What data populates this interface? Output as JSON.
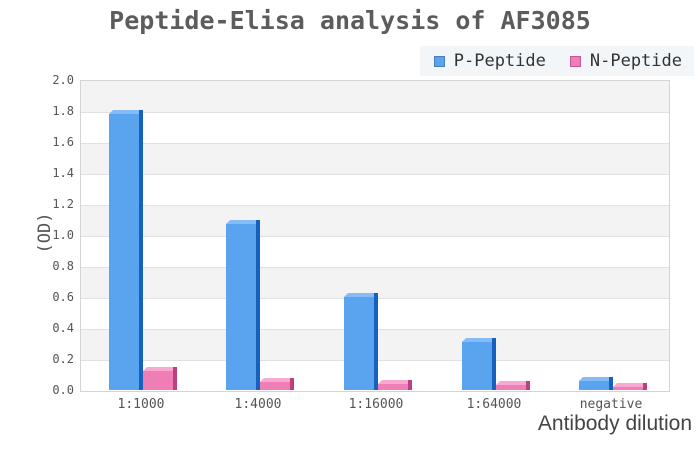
{
  "chart_data": {
    "type": "bar",
    "title": "Peptide-Elisa analysis of AF3085",
    "categories": [
      "1:1000",
      "1:4000",
      "1:16000",
      "1:64000",
      "negative"
    ],
    "series": [
      {
        "name": "P-Peptide",
        "color": "#59a3ef",
        "values": [
          1.78,
          1.07,
          0.6,
          0.31,
          0.06
        ]
      },
      {
        "name": "N-Peptide",
        "color": "#ef7db6",
        "values": [
          0.12,
          0.05,
          0.04,
          0.03,
          0.02
        ]
      }
    ],
    "xlabel": "Antibody dilution",
    "ylabel": "(OD)",
    "ylim": [
      0,
      2.0
    ],
    "ytick_step": 0.2,
    "ytick_labels": [
      "2.0",
      "1.8",
      "1.6",
      "1.4",
      "1.2",
      "1.0",
      "0.8",
      "0.6",
      "0.4",
      "0.2",
      "0.0"
    ],
    "grid": true,
    "band_fill": "alternating horizontal bands, gray on top interval",
    "legend_position": "top-right",
    "effect": "3d-bars"
  },
  "colors": {
    "p_front": "#59a3ef",
    "p_side": "#1661bd",
    "p_top": "#85bcf5",
    "p_swatch_border": "#4a7ebc",
    "n_front": "#ef7db6",
    "n_side": "#bc3f82",
    "n_top": "#f7a9d2",
    "n_swatch_border": "#c05a94",
    "band": "#f3f3f3",
    "grid": "#e1e1e1",
    "border": "#d4d4d4",
    "title_text": "#5c5c5c",
    "tick_text": "#555555",
    "axis_title_text": "#444444",
    "legend_bg": "#f2f6f9",
    "legend_text": "#333333"
  }
}
